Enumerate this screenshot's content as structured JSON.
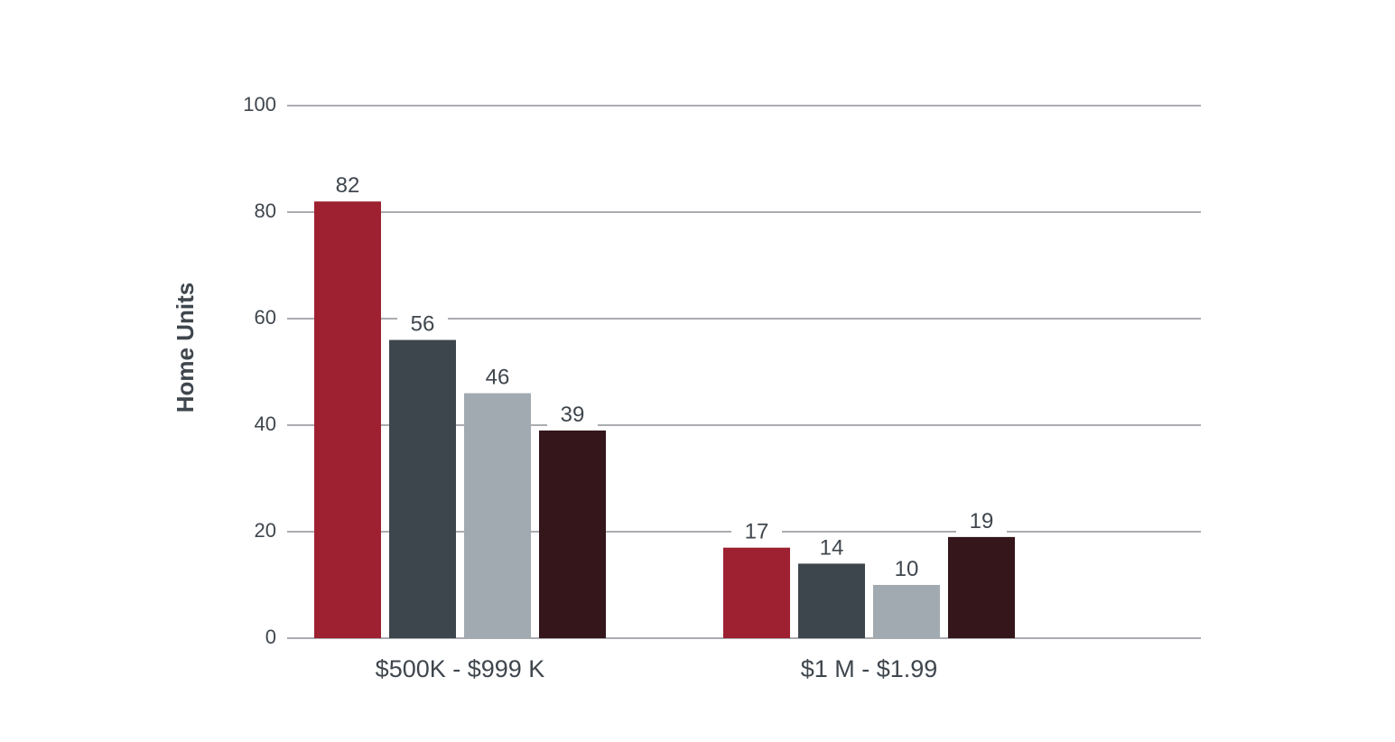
{
  "chart_data": {
    "type": "bar",
    "title": "",
    "xlabel": "",
    "ylabel": "Home Units",
    "categories": [
      "$500K - $999 K",
      "$1 M - $1.99"
    ],
    "ylim": [
      0,
      100
    ],
    "yticks": [
      0,
      20,
      40,
      60,
      80,
      100
    ],
    "grid": true,
    "legend": "none",
    "series": [
      {
        "values": [
          82,
          17
        ],
        "color": "#9d2130"
      },
      {
        "values": [
          56,
          14
        ],
        "color": "#3e464d"
      },
      {
        "values": [
          46,
          10
        ],
        "color": "#a1aab1"
      },
      {
        "values": [
          39,
          19
        ],
        "color": "#34161b"
      }
    ],
    "data_labels": [
      [
        "82",
        "17"
      ],
      [
        "56",
        "14"
      ],
      [
        "46",
        "10"
      ],
      [
        "39",
        "19"
      ]
    ]
  }
}
